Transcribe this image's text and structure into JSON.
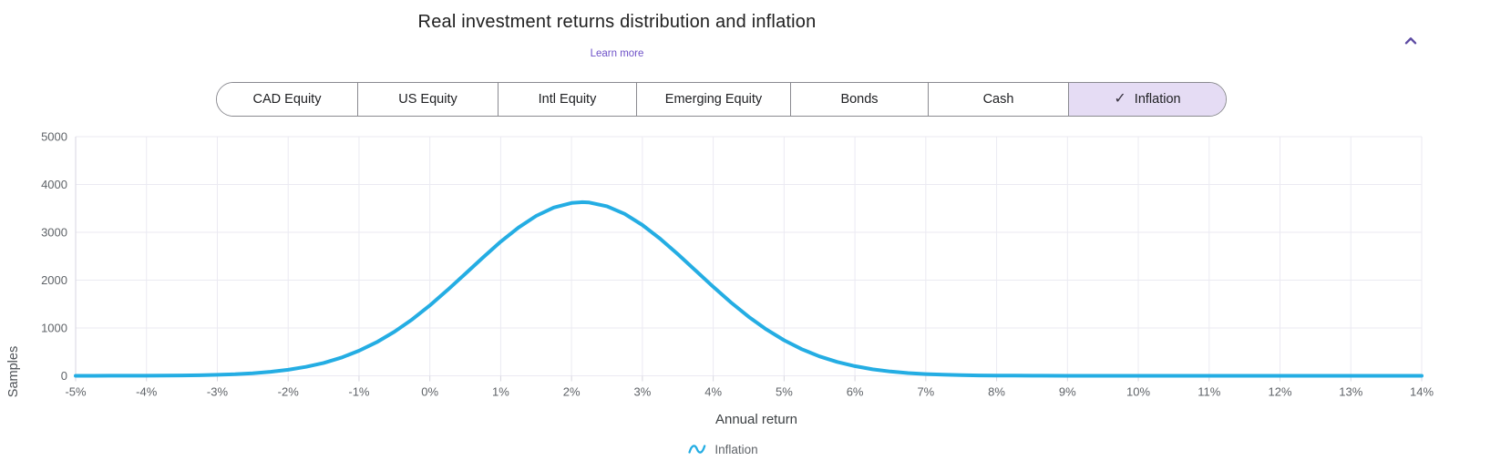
{
  "header": {
    "title": "Real investment returns distribution  and inflation",
    "learn_more": "Learn more"
  },
  "icons": {
    "collapse": "chevron-up-icon",
    "checkmark": "✓",
    "legend_marker": "wave-icon"
  },
  "colors": {
    "link": "#6e51c8",
    "collapse_icon": "#5d4ba3",
    "series_line": "#24ade3",
    "selected_toggle_bg": "#e5dcf4",
    "toggle_border": "#8a8a90"
  },
  "asset_toggle": {
    "items": [
      {
        "label": "CAD Equity",
        "selected": false
      },
      {
        "label": "US Equity",
        "selected": false
      },
      {
        "label": "Intl Equity",
        "selected": false
      },
      {
        "label": "Emerging Equity",
        "selected": false
      },
      {
        "label": "Bonds",
        "selected": false
      },
      {
        "label": "Cash",
        "selected": false
      },
      {
        "label": "Inflation",
        "selected": true
      }
    ]
  },
  "chart_data": {
    "type": "line",
    "title": "Real investment returns distribution  and inflation",
    "xlabel": "Annual return",
    "ylabel": "Samples",
    "x_range": [
      -5,
      14
    ],
    "y_range": [
      0,
      5000
    ],
    "grid": true,
    "legend_position": "bottom",
    "colors": {
      "grid": "#ebeaf2",
      "axis": "#d7d6e0",
      "tick_text": "#5f6368"
    },
    "x_ticks": [
      {
        "v": -5,
        "label": "-5%"
      },
      {
        "v": -4,
        "label": "-4%"
      },
      {
        "v": -3,
        "label": "-3%"
      },
      {
        "v": -2,
        "label": "-2%"
      },
      {
        "v": -1,
        "label": "-1%"
      },
      {
        "v": 0,
        "label": "0%"
      },
      {
        "v": 1,
        "label": "1%"
      },
      {
        "v": 2,
        "label": "2%"
      },
      {
        "v": 3,
        "label": "3%"
      },
      {
        "v": 4,
        "label": "4%"
      },
      {
        "v": 5,
        "label": "5%"
      },
      {
        "v": 6,
        "label": "6%"
      },
      {
        "v": 7,
        "label": "7%"
      },
      {
        "v": 8,
        "label": "8%"
      },
      {
        "v": 9,
        "label": "9%"
      },
      {
        "v": 10,
        "label": "10%"
      },
      {
        "v": 11,
        "label": "11%"
      },
      {
        "v": 12,
        "label": "12%"
      },
      {
        "v": 13,
        "label": "13%"
      },
      {
        "v": 14,
        "label": "14%"
      }
    ],
    "y_ticks": [
      0,
      1000,
      2000,
      3000,
      4000,
      5000
    ],
    "series": [
      {
        "name": "Inflation",
        "color": "#24ade3",
        "points": [
          [
            -5,
            0
          ],
          [
            -4.75,
            0
          ],
          [
            -4.5,
            1
          ],
          [
            -4.25,
            1
          ],
          [
            -4,
            2
          ],
          [
            -3.75,
            4
          ],
          [
            -3.5,
            7
          ],
          [
            -3.25,
            12
          ],
          [
            -3,
            20
          ],
          [
            -2.75,
            33
          ],
          [
            -2.5,
            53
          ],
          [
            -2.25,
            83
          ],
          [
            -2,
            126
          ],
          [
            -1.75,
            186
          ],
          [
            -1.5,
            269
          ],
          [
            -1.25,
            380
          ],
          [
            -1,
            523
          ],
          [
            -0.75,
            702
          ],
          [
            -0.5,
            921
          ],
          [
            -0.25,
            1179
          ],
          [
            0,
            1472
          ],
          [
            0.25,
            1794
          ],
          [
            0.5,
            2133
          ],
          [
            0.75,
            2475
          ],
          [
            1,
            2804
          ],
          [
            1.25,
            3099
          ],
          [
            1.5,
            3342
          ],
          [
            1.75,
            3518
          ],
          [
            2,
            3614
          ],
          [
            2.15,
            3630
          ],
          [
            2.25,
            3623
          ],
          [
            2.5,
            3544
          ],
          [
            2.75,
            3384
          ],
          [
            3,
            3152
          ],
          [
            3.25,
            2866
          ],
          [
            3.5,
            2543
          ],
          [
            3.75,
            2202
          ],
          [
            4,
            1860
          ],
          [
            4.25,
            1534
          ],
          [
            4.5,
            1235
          ],
          [
            4.75,
            969
          ],
          [
            5,
            743
          ],
          [
            5.25,
            556
          ],
          [
            5.5,
            405
          ],
          [
            5.75,
            289
          ],
          [
            6,
            201
          ],
          [
            6.25,
            136
          ],
          [
            6.5,
            90
          ],
          [
            6.75,
            58
          ],
          [
            7,
            37
          ],
          [
            7.25,
            23
          ],
          [
            7.5,
            14
          ],
          [
            7.75,
            8
          ],
          [
            8,
            5
          ],
          [
            8.25,
            3
          ],
          [
            8.5,
            1
          ],
          [
            9,
            0
          ],
          [
            9.5,
            0
          ],
          [
            10,
            0
          ],
          [
            10.5,
            0
          ],
          [
            11,
            0
          ],
          [
            11.5,
            0
          ],
          [
            12,
            0
          ],
          [
            12.5,
            0
          ],
          [
            13,
            0
          ],
          [
            13.5,
            0
          ],
          [
            14,
            0
          ]
        ]
      }
    ]
  },
  "legend": {
    "items": [
      {
        "label": "Inflation",
        "color": "#24ade3"
      }
    ]
  }
}
